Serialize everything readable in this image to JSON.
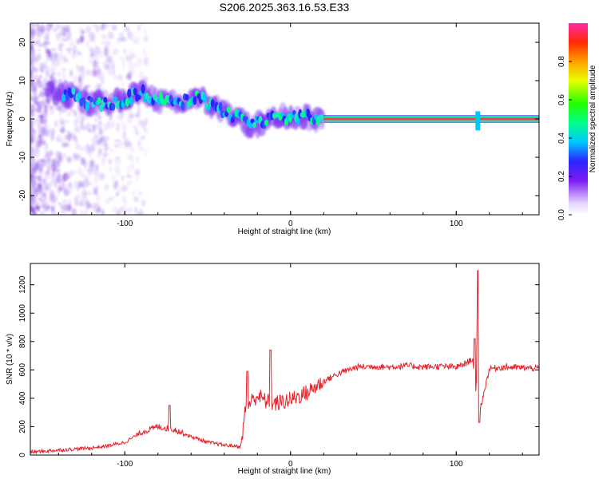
{
  "title": "S206.2025.363.16.53.E33",
  "colors": {
    "snr_line": "#e8222a",
    "ridge": "#ff3366",
    "frame": "#000000"
  },
  "chart_data": [
    {
      "type": "heatmap",
      "name": "spectrogram",
      "xlabel": "Height of straight line (km)",
      "ylabel": "Frequency (Hz)",
      "xlim": [
        -157,
        150
      ],
      "ylim": [
        -25,
        25
      ],
      "x_ticks": [
        -100,
        0,
        100
      ],
      "y_ticks": [
        -20,
        -10,
        0,
        10,
        20
      ],
      "colorbar": {
        "label": "Normalized spectral amplitude",
        "range": [
          0,
          1
        ],
        "ticks": [
          0.0,
          0.2,
          0.4,
          0.6,
          0.8
        ],
        "tick_labels": [
          "0.0",
          "0.2",
          "0.4",
          "0.6",
          "0.8"
        ],
        "colormap": "rainbow"
      },
      "ridge": [
        {
          "x": -140,
          "y": 7
        },
        {
          "x": -130,
          "y": 6
        },
        {
          "x": -120,
          "y": 4
        },
        {
          "x": -110,
          "y": 4
        },
        {
          "x": -100,
          "y": 5
        },
        {
          "x": -95,
          "y": 6
        },
        {
          "x": -90,
          "y": 7
        },
        {
          "x": -80,
          "y": 5
        },
        {
          "x": -70,
          "y": 4
        },
        {
          "x": -60,
          "y": 5
        },
        {
          "x": -55,
          "y": 6
        },
        {
          "x": -50,
          "y": 4
        },
        {
          "x": -40,
          "y": 2
        },
        {
          "x": -30,
          "y": 0
        },
        {
          "x": -25,
          "y": -2
        },
        {
          "x": -20,
          "y": -1
        },
        {
          "x": -10,
          "y": 0
        },
        {
          "x": 0,
          "y": 0.5
        },
        {
          "x": 10,
          "y": 0.5
        },
        {
          "x": 20,
          "y": 0
        },
        {
          "x": 150,
          "y": 0
        }
      ],
      "feature": {
        "x": 113,
        "y_range": [
          -3,
          2
        ]
      }
    },
    {
      "type": "line",
      "name": "snr",
      "xlabel": "Height of straight line (km)",
      "ylabel": "SNR (10 * v/v)",
      "xlim": [
        -157,
        150
      ],
      "ylim": [
        0,
        1350
      ],
      "x_ticks": [
        -100,
        0,
        100
      ],
      "y_ticks": [
        0,
        200,
        400,
        600,
        800,
        1000,
        1200
      ],
      "series": [
        {
          "x": [
            -157,
            -140,
            -120,
            -110,
            -100,
            -90,
            -80,
            -70,
            -60,
            -50,
            -40,
            -30,
            -27,
            -20,
            -15,
            -10,
            0,
            10,
            20,
            30,
            40,
            50,
            60,
            70,
            80,
            90,
            100,
            105,
            110,
            112,
            113,
            114,
            120,
            130,
            140,
            150
          ],
          "values": [
            20,
            35,
            50,
            65,
            90,
            160,
            200,
            180,
            130,
            90,
            70,
            60,
            340,
            420,
            380,
            360,
            390,
            440,
            520,
            580,
            620,
            625,
            620,
            630,
            620,
            625,
            620,
            640,
            680,
            400,
            1300,
            300,
            610,
            620,
            615,
            610
          ]
        }
      ],
      "spikes": [
        {
          "x": -73,
          "y": 350
        },
        {
          "x": -26,
          "y": 590
        },
        {
          "x": -12,
          "y": 740
        },
        {
          "x": 111,
          "y": 820
        },
        {
          "x": 113,
          "y": 1300
        },
        {
          "x": 114,
          "y": 230
        }
      ]
    }
  ]
}
